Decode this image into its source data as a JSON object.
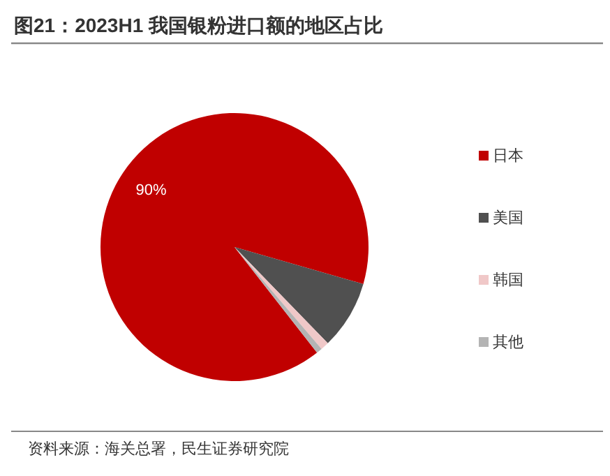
{
  "chart_data": {
    "type": "pie",
    "title": "图21：2023H1 我国银粉进口额的地区占比",
    "categories": [
      "日本",
      "美国",
      "韩国",
      "其他"
    ],
    "values": [
      90,
      8.3,
      1,
      0.7
    ],
    "colors": [
      "#c00000",
      "#505050",
      "#f0c8c8",
      "#b4b4b4"
    ],
    "value_labels": [
      "90%",
      null,
      null,
      null
    ],
    "legend": "right",
    "annotations": [
      "资料来源：海关总署，民生证券研究院"
    ]
  }
}
